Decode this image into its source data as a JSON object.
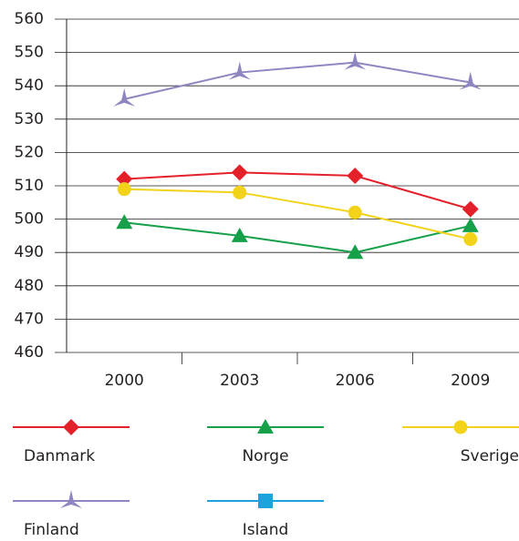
{
  "chart_data": {
    "type": "line",
    "categories": [
      "2000",
      "2003",
      "2006",
      "2009"
    ],
    "series": [
      {
        "name": "Danmark",
        "color": "#e4202a",
        "marker": "diamond",
        "values": [
          512,
          514,
          513,
          503
        ]
      },
      {
        "name": "Norge",
        "color": "#16a04a",
        "marker": "triangle",
        "values": [
          499,
          495,
          490,
          498
        ]
      },
      {
        "name": "Sverige",
        "color": "#f2d31a",
        "marker": "circle",
        "values": [
          509,
          508,
          502,
          494
        ]
      },
      {
        "name": "Finland",
        "color": "#8e86c1",
        "marker": "star",
        "values": [
          536,
          544,
          547,
          541
        ]
      },
      {
        "name": "Island",
        "color": "#1aa3dc",
        "marker": "square",
        "values": [
          null,
          null,
          null,
          null
        ]
      }
    ],
    "ylim": [
      460,
      560
    ],
    "yticks": [
      460,
      470,
      480,
      490,
      500,
      510,
      520,
      530,
      540,
      550,
      560
    ],
    "grid": true
  }
}
